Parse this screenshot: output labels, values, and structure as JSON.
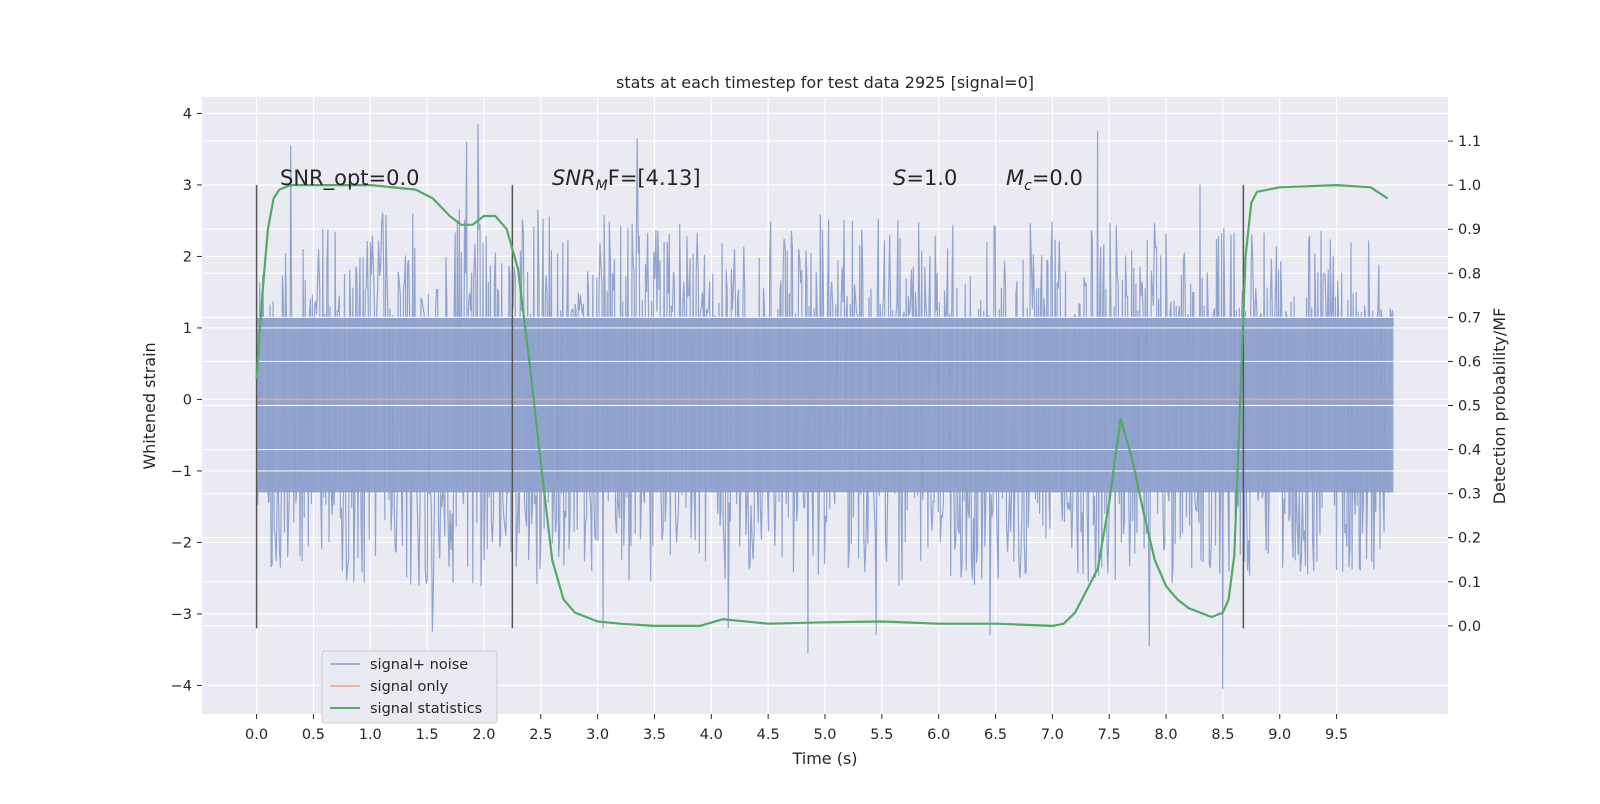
{
  "chart_data": {
    "type": "line",
    "title": "stats at each timestep for test data 2925 [signal=0]",
    "xlabel": "Time (s)",
    "ylabel_left": "Whitened strain",
    "ylabel_right": "Detection probability/MF",
    "xlim": [
      -0.48,
      10.48
    ],
    "ylim_left": [
      -4.4,
      4.23
    ],
    "ylim_right": [
      -0.2,
      1.2
    ],
    "xticks": [
      0.0,
      0.5,
      1.0,
      1.5,
      2.0,
      2.5,
      3.0,
      3.5,
      4.0,
      4.5,
      5.0,
      5.5,
      6.0,
      6.5,
      7.0,
      7.5,
      8.0,
      8.5,
      9.0,
      9.5
    ],
    "xtick_labels": [
      "0.0",
      "0.5",
      "1.0",
      "1.5",
      "2.0",
      "2.5",
      "3.0",
      "3.5",
      "4.0",
      "4.5",
      "5.0",
      "5.5",
      "6.0",
      "6.5",
      "7.0",
      "7.5",
      "8.0",
      "8.5",
      "9.0",
      "9.5"
    ],
    "yticks_left": [
      -4,
      -3,
      -2,
      -1,
      0,
      1,
      2,
      3,
      4
    ],
    "ytick_labels_left": [
      "−4",
      "−3",
      "−2",
      "−1",
      "0",
      "1",
      "2",
      "3",
      "4"
    ],
    "yticks_right": [
      0.0,
      0.1,
      0.2,
      0.3,
      0.4,
      0.5,
      0.6,
      0.7,
      0.8,
      0.9,
      1.0,
      1.1
    ],
    "ytick_labels_right": [
      "0.0",
      "0.1",
      "0.2",
      "0.3",
      "0.4",
      "0.5",
      "0.6",
      "0.7",
      "0.8",
      "0.9",
      "1.0",
      "1.1"
    ],
    "grid": true,
    "legend_position": "lower-left",
    "annotations": {
      "snr_opt": "SNR_opt=0.0",
      "snr_mf_italic": "SNR",
      "snr_mf_sub": "M",
      "snr_mf_rest": "F=[4.13]",
      "s_italic": "S",
      "s_rest": "=1.0",
      "mc_italic": "M",
      "mc_sub": "c",
      "mc_rest": "=0.0"
    },
    "vertical_markers": [
      0.0,
      2.25,
      8.68
    ],
    "series": [
      {
        "name": "signal+ noise",
        "color": "#8da0cb",
        "style": "noise",
        "x_range": [
          0.0,
          10.0
        ],
        "envelope_upper": [
          [
            0.0,
            1.7
          ],
          [
            0.5,
            2.5
          ],
          [
            1.0,
            2.6
          ],
          [
            2.0,
            2.7
          ],
          [
            3.0,
            2.6
          ],
          [
            4.0,
            2.5
          ],
          [
            5.0,
            2.6
          ],
          [
            6.0,
            2.5
          ],
          [
            7.0,
            2.5
          ],
          [
            8.0,
            2.5
          ],
          [
            9.0,
            2.4
          ],
          [
            10.0,
            2.3
          ]
        ],
        "envelope_lower": [
          [
            0.0,
            -2.3
          ],
          [
            0.5,
            -2.5
          ],
          [
            1.0,
            -2.6
          ],
          [
            2.0,
            -2.7
          ],
          [
            3.0,
            -2.6
          ],
          [
            4.0,
            -2.6
          ],
          [
            5.0,
            -2.6
          ],
          [
            6.0,
            -2.6
          ],
          [
            7.0,
            -2.6
          ],
          [
            8.0,
            -2.6
          ],
          [
            9.0,
            -2.5
          ],
          [
            10.0,
            -2.4
          ]
        ],
        "peaks": [
          [
            0.3,
            3.55
          ],
          [
            1.95,
            3.85
          ],
          [
            3.35,
            3.65
          ],
          [
            7.4,
            3.75
          ],
          [
            1.85,
            3.6
          ],
          [
            8.3,
            3.0
          ],
          [
            1.55,
            -3.25
          ],
          [
            4.15,
            -3.2
          ],
          [
            4.85,
            -3.55
          ],
          [
            7.85,
            -3.45
          ],
          [
            8.5,
            -4.05
          ],
          [
            5.45,
            -3.3
          ],
          [
            6.45,
            -3.3
          ],
          [
            3.05,
            -3.2
          ]
        ]
      },
      {
        "name": "signal only",
        "color": "#e8a88a",
        "x": [
          0.0,
          10.0
        ],
        "y": [
          0.0,
          0.0
        ]
      },
      {
        "name": "signal statistics",
        "color": "#55a868",
        "axis": "right",
        "x": [
          0.0,
          0.05,
          0.1,
          0.15,
          0.2,
          0.3,
          0.5,
          1.0,
          1.4,
          1.55,
          1.7,
          1.8,
          1.9,
          2.0,
          2.1,
          2.2,
          2.3,
          2.4,
          2.5,
          2.6,
          2.7,
          2.8,
          2.9,
          3.0,
          3.2,
          3.5,
          3.9,
          4.1,
          4.5,
          5.0,
          5.5,
          6.0,
          6.5,
          7.0,
          7.1,
          7.2,
          7.3,
          7.4,
          7.5,
          7.6,
          7.7,
          7.8,
          7.9,
          8.0,
          8.1,
          8.2,
          8.3,
          8.4,
          8.5,
          8.55,
          8.6,
          8.65,
          8.7,
          8.75,
          8.8,
          8.9,
          9.0,
          9.5,
          9.8,
          9.95
        ],
        "y": [
          0.56,
          0.75,
          0.9,
          0.97,
          0.99,
          1.0,
          1.0,
          1.0,
          0.99,
          0.97,
          0.93,
          0.91,
          0.91,
          0.93,
          0.93,
          0.9,
          0.81,
          0.6,
          0.37,
          0.15,
          0.06,
          0.03,
          0.02,
          0.01,
          0.005,
          0.0,
          0.0,
          0.015,
          0.005,
          0.008,
          0.01,
          0.005,
          0.005,
          0.0,
          0.005,
          0.03,
          0.08,
          0.13,
          0.28,
          0.47,
          0.38,
          0.26,
          0.15,
          0.09,
          0.06,
          0.04,
          0.03,
          0.02,
          0.03,
          0.06,
          0.16,
          0.5,
          0.84,
          0.96,
          0.985,
          0.99,
          0.995,
          1.0,
          0.995,
          0.97
        ]
      }
    ]
  }
}
